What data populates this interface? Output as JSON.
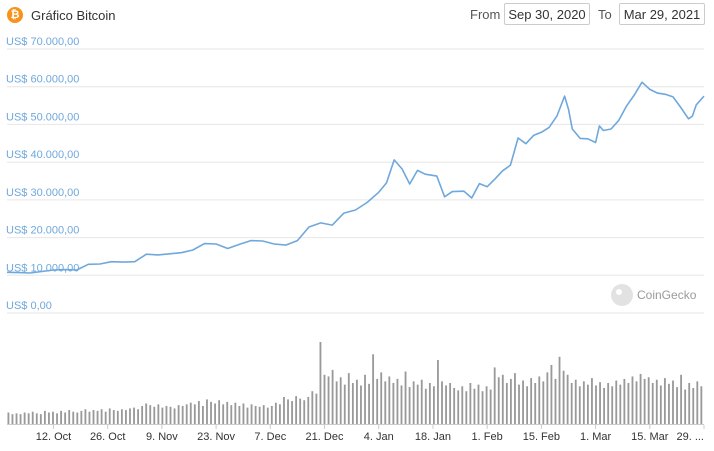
{
  "header": {
    "logo_glyph": "₿",
    "title": "Gráfico Bitcoin",
    "from_label": "From",
    "from_value": "Sep 30, 2020",
    "to_label": "To",
    "to_value": "Mar 29, 2021"
  },
  "watermark": {
    "text": "CoinGecko"
  },
  "colors": {
    "line": "#6fa8dc",
    "volume": "#999999",
    "grid": "#e6e6e6",
    "accent": "#f7931a"
  },
  "chart_data": {
    "type": "line",
    "title": "Gráfico Bitcoin",
    "y_tick_labels": [
      "US$ 0,00",
      "US$ 10.000,00",
      "US$ 20.000,00",
      "US$ 30.000,00",
      "US$ 40.000,00",
      "US$ 50.000,00",
      "US$ 60.000,00",
      "US$ 70.000,00"
    ],
    "y_ticks": [
      0,
      10000,
      20000,
      30000,
      40000,
      50000,
      60000,
      70000
    ],
    "ylim": [
      0,
      70000
    ],
    "x_range": [
      "2020-09-30",
      "2021-03-29"
    ],
    "x_tick_labels": [
      {
        "date": "2020-10-12",
        "label": "12. Oct"
      },
      {
        "date": "2020-10-26",
        "label": "26. Oct"
      },
      {
        "date": "2020-11-09",
        "label": "9. Nov"
      },
      {
        "date": "2020-11-23",
        "label": "23. Nov"
      },
      {
        "date": "2020-12-07",
        "label": "7. Dec"
      },
      {
        "date": "2020-12-21",
        "label": "21. Dec"
      },
      {
        "date": "2021-01-04",
        "label": "4. Jan"
      },
      {
        "date": "2021-01-18",
        "label": "18. Jan"
      },
      {
        "date": "2021-02-01",
        "label": "1. Feb"
      },
      {
        "date": "2021-02-15",
        "label": "15. Feb"
      },
      {
        "date": "2021-03-01",
        "label": "1. Mar"
      },
      {
        "date": "2021-03-15",
        "label": "15. Mar"
      },
      {
        "date": "2021-03-29",
        "label": "29. ..."
      }
    ],
    "grid": true,
    "series": [
      {
        "points": [
          [
            "2020-09-30",
            10800
          ],
          [
            "2020-10-03",
            10700
          ],
          [
            "2020-10-06",
            10600
          ],
          [
            "2020-10-09",
            11000
          ],
          [
            "2020-10-12",
            11400
          ],
          [
            "2020-10-15",
            11500
          ],
          [
            "2020-10-18",
            11400
          ],
          [
            "2020-10-21",
            12900
          ],
          [
            "2020-10-24",
            13000
          ],
          [
            "2020-10-27",
            13600
          ],
          [
            "2020-10-30",
            13500
          ],
          [
            "2020-11-02",
            13600
          ],
          [
            "2020-11-05",
            15600
          ],
          [
            "2020-11-08",
            15400
          ],
          [
            "2020-11-11",
            15700
          ],
          [
            "2020-11-14",
            16000
          ],
          [
            "2020-11-17",
            16700
          ],
          [
            "2020-11-20",
            18400
          ],
          [
            "2020-11-23",
            18300
          ],
          [
            "2020-11-26",
            17100
          ],
          [
            "2020-11-29",
            18200
          ],
          [
            "2020-12-02",
            19200
          ],
          [
            "2020-12-05",
            19100
          ],
          [
            "2020-12-08",
            18300
          ],
          [
            "2020-12-11",
            18000
          ],
          [
            "2020-12-14",
            19200
          ],
          [
            "2020-12-17",
            22800
          ],
          [
            "2020-12-20",
            23900
          ],
          [
            "2020-12-23",
            23300
          ],
          [
            "2020-12-26",
            26500
          ],
          [
            "2020-12-29",
            27300
          ],
          [
            "2021-01-01",
            29300
          ],
          [
            "2021-01-04",
            32000
          ],
          [
            "2021-01-06",
            34500
          ],
          [
            "2021-01-08",
            40600
          ],
          [
            "2021-01-10",
            38200
          ],
          [
            "2021-01-12",
            34200
          ],
          [
            "2021-01-14",
            37800
          ],
          [
            "2021-01-16",
            36800
          ],
          [
            "2021-01-19",
            36300
          ],
          [
            "2021-01-21",
            30800
          ],
          [
            "2021-01-23",
            32200
          ],
          [
            "2021-01-26",
            32300
          ],
          [
            "2021-01-28",
            30500
          ],
          [
            "2021-01-30",
            34300
          ],
          [
            "2021-02-01",
            33500
          ],
          [
            "2021-02-03",
            35500
          ],
          [
            "2021-02-05",
            37700
          ],
          [
            "2021-02-07",
            39200
          ],
          [
            "2021-02-09",
            46400
          ],
          [
            "2021-02-11",
            44900
          ],
          [
            "2021-02-13",
            47100
          ],
          [
            "2021-02-15",
            47900
          ],
          [
            "2021-02-17",
            49200
          ],
          [
            "2021-02-19",
            52200
          ],
          [
            "2021-02-21",
            57500
          ],
          [
            "2021-02-22",
            54000
          ],
          [
            "2021-02-23",
            48800
          ],
          [
            "2021-02-25",
            46300
          ],
          [
            "2021-02-27",
            46200
          ],
          [
            "2021-03-01",
            45200
          ],
          [
            "2021-03-02",
            49600
          ],
          [
            "2021-03-03",
            48400
          ],
          [
            "2021-03-05",
            48800
          ],
          [
            "2021-03-07",
            51100
          ],
          [
            "2021-03-09",
            54900
          ],
          [
            "2021-03-11",
            57800
          ],
          [
            "2021-03-13",
            61200
          ],
          [
            "2021-03-15",
            59300
          ],
          [
            "2021-03-17",
            58300
          ],
          [
            "2021-03-19",
            58000
          ],
          [
            "2021-03-21",
            57300
          ],
          [
            "2021-03-23",
            54500
          ],
          [
            "2021-03-25",
            51500
          ],
          [
            "2021-03-26",
            52200
          ],
          [
            "2021-03-27",
            55200
          ],
          [
            "2021-03-29",
            57500
          ]
        ]
      }
    ],
    "volume": {
      "description_unit": "relative",
      "values": [
        0.14,
        0.12,
        0.13,
        0.12,
        0.14,
        0.13,
        0.15,
        0.13,
        0.12,
        0.16,
        0.14,
        0.15,
        0.13,
        0.16,
        0.14,
        0.17,
        0.15,
        0.14,
        0.16,
        0.18,
        0.15,
        0.17,
        0.16,
        0.18,
        0.15,
        0.19,
        0.17,
        0.16,
        0.18,
        0.17,
        0.19,
        0.2,
        0.18,
        0.22,
        0.25,
        0.23,
        0.21,
        0.24,
        0.2,
        0.22,
        0.21,
        0.19,
        0.23,
        0.22,
        0.24,
        0.26,
        0.24,
        0.28,
        0.22,
        0.3,
        0.27,
        0.25,
        0.29,
        0.24,
        0.27,
        0.23,
        0.26,
        0.22,
        0.25,
        0.2,
        0.24,
        0.22,
        0.21,
        0.23,
        0.2,
        0.22,
        0.26,
        0.24,
        0.33,
        0.3,
        0.28,
        0.34,
        0.31,
        0.29,
        0.33,
        0.4,
        0.37,
        1.0,
        0.6,
        0.58,
        0.66,
        0.52,
        0.57,
        0.48,
        0.62,
        0.5,
        0.54,
        0.47,
        0.6,
        0.49,
        0.85,
        0.55,
        0.63,
        0.52,
        0.58,
        0.5,
        0.55,
        0.47,
        0.64,
        0.45,
        0.52,
        0.48,
        0.54,
        0.43,
        0.5,
        0.46,
        0.78,
        0.52,
        0.47,
        0.5,
        0.44,
        0.41,
        0.46,
        0.4,
        0.5,
        0.43,
        0.48,
        0.4,
        0.46,
        0.42,
        0.69,
        0.57,
        0.6,
        0.5,
        0.55,
        0.62,
        0.48,
        0.53,
        0.46,
        0.56,
        0.5,
        0.58,
        0.52,
        0.63,
        0.72,
        0.55,
        0.82,
        0.65,
        0.6,
        0.5,
        0.54,
        0.46,
        0.52,
        0.48,
        0.56,
        0.47,
        0.51,
        0.44,
        0.5,
        0.46,
        0.53,
        0.48,
        0.55,
        0.5,
        0.58,
        0.52,
        0.61,
        0.55,
        0.57,
        0.5,
        0.54,
        0.47,
        0.56,
        0.49,
        0.53,
        0.45,
        0.6,
        0.42,
        0.5,
        0.44,
        0.52,
        0.46
      ]
    }
  }
}
